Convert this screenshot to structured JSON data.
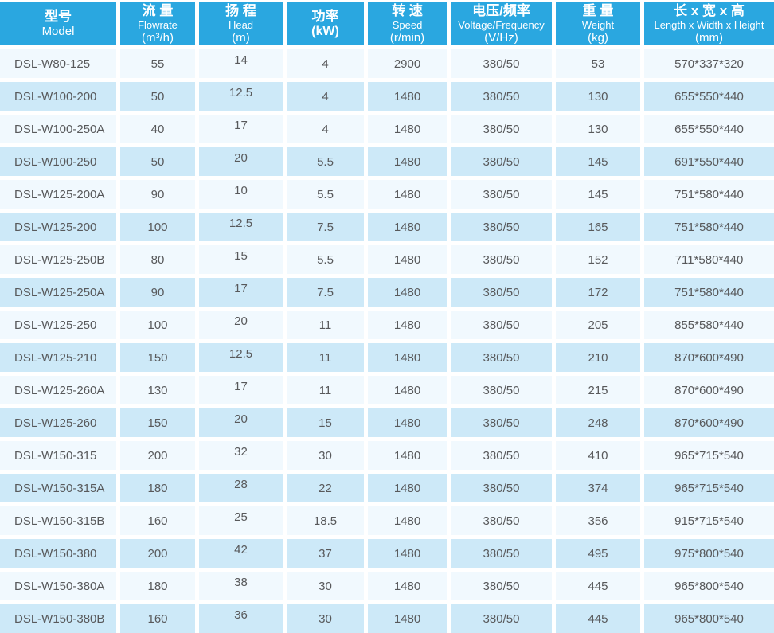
{
  "columns": [
    {
      "cn": "型号",
      "en": "Model",
      "unit": ""
    },
    {
      "cn": "流 量",
      "en": "Flowrate",
      "unit": "(m³/h)"
    },
    {
      "cn": "扬 程",
      "en": "Head",
      "unit": "(m)"
    },
    {
      "cn": "功率",
      "en": "",
      "unit": "(kW)"
    },
    {
      "cn": "转 速",
      "en": "Speed",
      "unit": "(r/min)"
    },
    {
      "cn": "电压/频率",
      "en": "Voltage/Frequency",
      "unit": "(V/Hz)"
    },
    {
      "cn": "重 量",
      "en": "Weight",
      "unit": "(kg)"
    },
    {
      "cn": "长 x 宽 x 高",
      "en": "Length x Width x Height",
      "unit": "(mm)"
    }
  ],
  "rows": [
    [
      "DSL-W80-125",
      "55",
      "14",
      "4",
      "2900",
      "380/50",
      "53",
      "570*337*320"
    ],
    [
      "DSL-W100-200",
      "50",
      "12.5",
      "4",
      "1480",
      "380/50",
      "130",
      "655*550*440"
    ],
    [
      "DSL-W100-250A",
      "40",
      "17",
      "4",
      "1480",
      "380/50",
      "130",
      "655*550*440"
    ],
    [
      "DSL-W100-250",
      "50",
      "20",
      "5.5",
      "1480",
      "380/50",
      "145",
      "691*550*440"
    ],
    [
      "DSL-W125-200A",
      "90",
      "10",
      "5.5",
      "1480",
      "380/50",
      "145",
      "751*580*440"
    ],
    [
      "DSL-W125-200",
      "100",
      "12.5",
      "7.5",
      "1480",
      "380/50",
      "165",
      "751*580*440"
    ],
    [
      "DSL-W125-250B",
      "80",
      "15",
      "5.5",
      "1480",
      "380/50",
      "152",
      "711*580*440"
    ],
    [
      "DSL-W125-250A",
      "90",
      "17",
      "7.5",
      "1480",
      "380/50",
      "172",
      "751*580*440"
    ],
    [
      "DSL-W125-250",
      "100",
      "20",
      "11",
      "1480",
      "380/50",
      "205",
      "855*580*440"
    ],
    [
      "DSL-W125-210",
      "150",
      "12.5",
      "11",
      "1480",
      "380/50",
      "210",
      "870*600*490"
    ],
    [
      "DSL-W125-260A",
      "130",
      "17",
      "11",
      "1480",
      "380/50",
      "215",
      "870*600*490"
    ],
    [
      "DSL-W125-260",
      "150",
      "20",
      "15",
      "1480",
      "380/50",
      "248",
      "870*600*490"
    ],
    [
      "DSL-W150-315",
      "200",
      "32",
      "30",
      "1480",
      "380/50",
      "410",
      "965*715*540"
    ],
    [
      "DSL-W150-315A",
      "180",
      "28",
      "22",
      "1480",
      "380/50",
      "374",
      "965*715*540"
    ],
    [
      "DSL-W150-315B",
      "160",
      "25",
      "18.5",
      "1480",
      "380/50",
      "356",
      "915*715*540"
    ],
    [
      "DSL-W150-380",
      "200",
      "42",
      "37",
      "1480",
      "380/50",
      "495",
      "975*800*540"
    ],
    [
      "DSL-W150-380A",
      "180",
      "38",
      "30",
      "1480",
      "380/50",
      "445",
      "965*800*540"
    ],
    [
      "DSL-W150-380B",
      "160",
      "36",
      "30",
      "1480",
      "380/50",
      "445",
      "965*800*540"
    ]
  ],
  "colors": {
    "header_bg": "#2AA7E0",
    "header_text": "#FFFFFF",
    "row_light": "#F1F9FE",
    "row_dark": "#CDE9F8",
    "cell_text": "#58595B",
    "gap": "#FFFFFF"
  }
}
